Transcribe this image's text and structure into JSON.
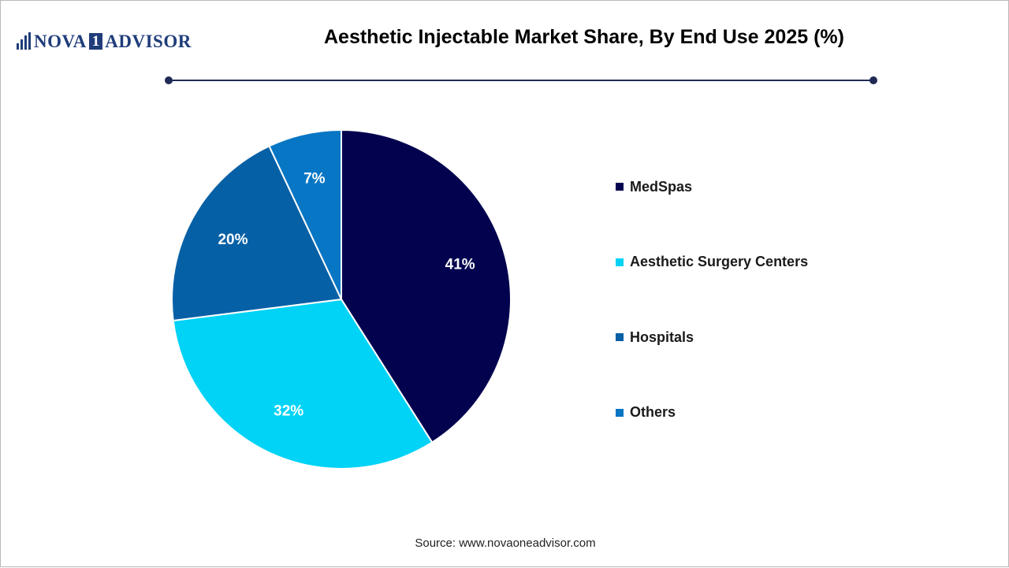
{
  "brand": {
    "name_left": "NOVA",
    "name_digit": "1",
    "name_right": "ADVISOR"
  },
  "chart_data": {
    "type": "pie",
    "title": "Aesthetic Injectable Market Share, By End Use 2025 (%)",
    "categories": [
      "MedSpas",
      "Aesthetic Surgery Centers",
      "Hospitals",
      "Others"
    ],
    "values": [
      41,
      32,
      20,
      7
    ],
    "data_labels": [
      "41%",
      "32%",
      "20%",
      "7%"
    ],
    "colors": [
      "#02024f",
      "#00d3f5",
      "#0660a6",
      "#0776c4"
    ],
    "legend_position": "right"
  },
  "source": "Source: www.novaoneadvisor.com"
}
